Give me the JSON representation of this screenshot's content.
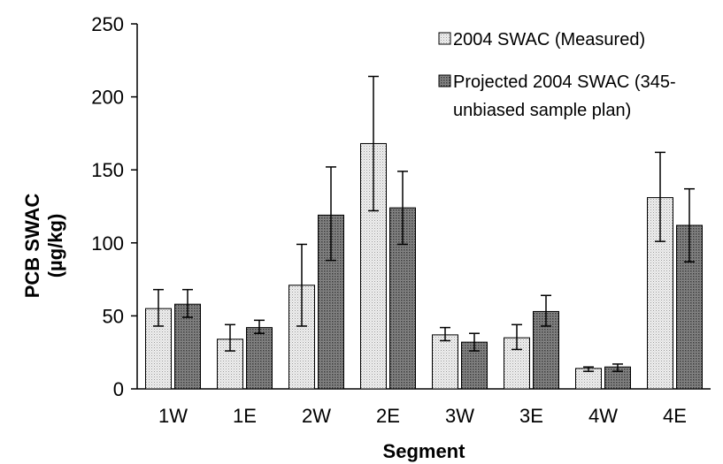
{
  "chart_data": {
    "type": "bar",
    "xlabel": "Segment",
    "ylabel": [
      "PCB SWAC",
      "(µg/kg)"
    ],
    "ylim": [
      0,
      250
    ],
    "yticks": [
      0,
      50,
      100,
      150,
      200,
      250
    ],
    "grid": false,
    "legend_position": "top-right",
    "categories": [
      "1W",
      "1E",
      "2W",
      "2E",
      "3W",
      "3E",
      "4W",
      "4E"
    ],
    "series": [
      {
        "name": "2004 SWAC (Measured)",
        "legend_lines": [
          "2004 SWAC (Measured)"
        ],
        "pattern": "light-dotted",
        "values": [
          55,
          34,
          71,
          168,
          37,
          35,
          14,
          131
        ],
        "error_low": [
          43,
          26,
          43,
          122,
          33,
          27,
          12,
          101
        ],
        "error_high": [
          68,
          44,
          99,
          214,
          42,
          44,
          15,
          162
        ]
      },
      {
        "name": "Projected 2004 SWAC (345-unbiased sample plan)",
        "legend_lines": [
          "Projected 2004 SWAC (345-",
          "unbiased sample plan)"
        ],
        "pattern": "dark-dotted",
        "values": [
          58,
          42,
          119,
          124,
          32,
          53,
          15,
          112
        ],
        "error_low": [
          49,
          38,
          88,
          99,
          26,
          43,
          12,
          87
        ],
        "error_high": [
          68,
          47,
          152,
          149,
          38,
          64,
          17,
          137
        ]
      }
    ]
  }
}
